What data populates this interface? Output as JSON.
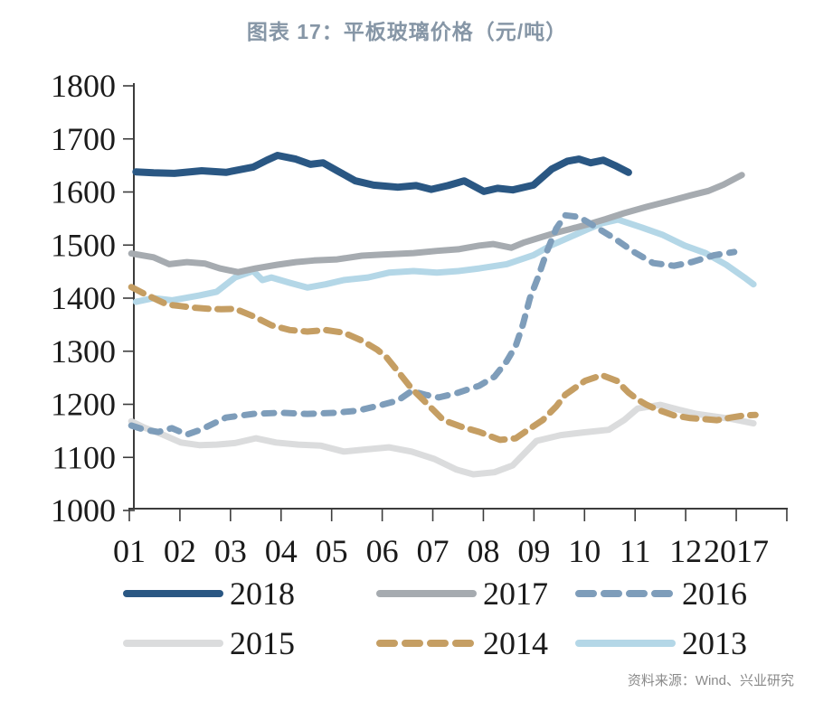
{
  "header": {
    "title": "图表 17：平板玻璃价格（元/吨）"
  },
  "source_note": "资料来源：Wind、兴业研究",
  "chart_data": {
    "type": "line",
    "title": "图表 17：平板玻璃价格（元/吨）",
    "unit": "元/吨",
    "grid": false,
    "legend_position": "bottom",
    "y_axis": {
      "min": 1000,
      "max": 1800,
      "step": 100,
      "tick_labels": [
        "1000",
        "1100",
        "1200",
        "1300",
        "1400",
        "1500",
        "1600",
        "1700",
        "1800"
      ]
    },
    "x_axis": {
      "tick_labels": [
        "01",
        "02",
        "03",
        "04",
        "05",
        "06",
        "07",
        "08",
        "09",
        "10",
        "11",
        "12",
        "2017",
        ""
      ]
    },
    "legend_order": [
      [
        "2018",
        "2017",
        "2016"
      ],
      [
        "2015",
        "2014",
        "2013"
      ]
    ],
    "series": [
      {
        "name": "2015",
        "color": "#dbdcdd",
        "style": "solid",
        "points": [
          [
            1.04,
            1168
          ],
          [
            1.3,
            1156
          ],
          [
            1.66,
            1143
          ],
          [
            2.02,
            1128
          ],
          [
            2.38,
            1123
          ],
          [
            2.73,
            1124
          ],
          [
            3.09,
            1127
          ],
          [
            3.5,
            1136
          ],
          [
            3.9,
            1128
          ],
          [
            4.34,
            1124
          ],
          [
            4.79,
            1122
          ],
          [
            5.24,
            1111
          ],
          [
            5.69,
            1115
          ],
          [
            6.13,
            1119
          ],
          [
            6.58,
            1111
          ],
          [
            7.03,
            1097
          ],
          [
            7.47,
            1077
          ],
          [
            7.8,
            1068
          ],
          [
            8.22,
            1072
          ],
          [
            8.58,
            1085
          ],
          [
            9.05,
            1131
          ],
          [
            9.53,
            1142
          ],
          [
            9.98,
            1147
          ],
          [
            10.48,
            1152
          ],
          [
            10.78,
            1170
          ],
          [
            11.05,
            1192
          ],
          [
            11.5,
            1199
          ],
          [
            11.86,
            1190
          ],
          [
            12.21,
            1182
          ],
          [
            12.57,
            1177
          ],
          [
            12.93,
            1172
          ],
          [
            13.34,
            1164
          ]
        ]
      },
      {
        "name": "2013",
        "color": "#b4d7e7",
        "style": "solid",
        "points": [
          [
            1.13,
            1393
          ],
          [
            1.48,
            1400
          ],
          [
            1.84,
            1396
          ],
          [
            2.38,
            1405
          ],
          [
            2.73,
            1412
          ],
          [
            3.09,
            1439
          ],
          [
            3.45,
            1451
          ],
          [
            3.63,
            1434
          ],
          [
            3.81,
            1439
          ],
          [
            4.17,
            1429
          ],
          [
            4.52,
            1420
          ],
          [
            4.88,
            1426
          ],
          [
            5.24,
            1434
          ],
          [
            5.72,
            1439
          ],
          [
            6.13,
            1448
          ],
          [
            6.62,
            1451
          ],
          [
            7.08,
            1448
          ],
          [
            7.51,
            1451
          ],
          [
            7.92,
            1456
          ],
          [
            8.46,
            1464
          ],
          [
            8.99,
            1481
          ],
          [
            9.35,
            1500
          ],
          [
            9.71,
            1515
          ],
          [
            10.07,
            1530
          ],
          [
            10.34,
            1541
          ],
          [
            10.66,
            1548
          ],
          [
            11.14,
            1533
          ],
          [
            11.55,
            1519
          ],
          [
            11.98,
            1499
          ],
          [
            12.39,
            1485
          ],
          [
            12.8,
            1463
          ],
          [
            13.16,
            1439
          ],
          [
            13.34,
            1426
          ]
        ]
      },
      {
        "name": "2017",
        "color": "#a6abb0",
        "style": "solid",
        "points": [
          [
            1.04,
            1484
          ],
          [
            1.48,
            1477
          ],
          [
            1.79,
            1464
          ],
          [
            2.14,
            1468
          ],
          [
            2.5,
            1465
          ],
          [
            2.79,
            1456
          ],
          [
            3.15,
            1449
          ],
          [
            3.5,
            1456
          ],
          [
            3.93,
            1463
          ],
          [
            4.29,
            1468
          ],
          [
            4.65,
            1471
          ],
          [
            5.11,
            1473
          ],
          [
            5.6,
            1480
          ],
          [
            6.01,
            1482
          ],
          [
            6.62,
            1485
          ],
          [
            7.08,
            1489
          ],
          [
            7.51,
            1492
          ],
          [
            7.92,
            1499
          ],
          [
            8.19,
            1502
          ],
          [
            8.55,
            1495
          ],
          [
            8.81,
            1505
          ],
          [
            9.08,
            1513
          ],
          [
            9.39,
            1522
          ],
          [
            9.71,
            1530
          ],
          [
            10.07,
            1539
          ],
          [
            10.42,
            1549
          ],
          [
            10.78,
            1560
          ],
          [
            11.23,
            1572
          ],
          [
            11.68,
            1583
          ],
          [
            12.03,
            1592
          ],
          [
            12.45,
            1602
          ],
          [
            12.75,
            1614
          ],
          [
            13.11,
            1632
          ]
        ]
      },
      {
        "name": "2016",
        "color": "#7e9dba",
        "style": "dashed",
        "points": [
          [
            1.04,
            1160
          ],
          [
            1.3,
            1152
          ],
          [
            1.57,
            1148
          ],
          [
            1.84,
            1155
          ],
          [
            2.14,
            1143
          ],
          [
            2.41,
            1152
          ],
          [
            2.91,
            1175
          ],
          [
            3.45,
            1182
          ],
          [
            3.99,
            1184
          ],
          [
            4.52,
            1182
          ],
          [
            5.06,
            1184
          ],
          [
            5.51,
            1188
          ],
          [
            5.95,
            1198
          ],
          [
            6.31,
            1207
          ],
          [
            6.58,
            1225
          ],
          [
            6.85,
            1218
          ],
          [
            7.12,
            1213
          ],
          [
            7.47,
            1221
          ],
          [
            7.92,
            1235
          ],
          [
            8.22,
            1252
          ],
          [
            8.46,
            1281
          ],
          [
            8.64,
            1310
          ],
          [
            8.78,
            1350
          ],
          [
            8.92,
            1400
          ],
          [
            9.08,
            1439
          ],
          [
            9.26,
            1489
          ],
          [
            9.44,
            1531
          ],
          [
            9.62,
            1556
          ],
          [
            9.89,
            1553
          ],
          [
            10.19,
            1536
          ],
          [
            10.6,
            1512
          ],
          [
            10.96,
            1488
          ],
          [
            11.36,
            1466
          ],
          [
            11.77,
            1461
          ],
          [
            12.12,
            1468
          ],
          [
            12.57,
            1481
          ],
          [
            12.96,
            1487
          ]
        ]
      },
      {
        "name": "2014",
        "color": "#c59e63",
        "style": "dashed",
        "points": [
          [
            1.04,
            1421
          ],
          [
            1.3,
            1408
          ],
          [
            1.57,
            1396
          ],
          [
            1.75,
            1388
          ],
          [
            2.02,
            1385
          ],
          [
            2.29,
            1382
          ],
          [
            2.56,
            1380
          ],
          [
            2.82,
            1379
          ],
          [
            3.09,
            1380
          ],
          [
            3.45,
            1366
          ],
          [
            3.81,
            1349
          ],
          [
            4.17,
            1340
          ],
          [
            4.52,
            1337
          ],
          [
            4.88,
            1340
          ],
          [
            5.24,
            1335
          ],
          [
            5.6,
            1320
          ],
          [
            5.9,
            1303
          ],
          [
            6.08,
            1289
          ],
          [
            6.37,
            1255
          ],
          [
            6.58,
            1230
          ],
          [
            6.94,
            1196
          ],
          [
            7.21,
            1170
          ],
          [
            7.56,
            1158
          ],
          [
            7.92,
            1148
          ],
          [
            8.33,
            1133
          ],
          [
            8.64,
            1136
          ],
          [
            8.9,
            1153
          ],
          [
            9.17,
            1170
          ],
          [
            9.44,
            1196
          ],
          [
            9.62,
            1218
          ],
          [
            10.01,
            1244
          ],
          [
            10.34,
            1255
          ],
          [
            10.64,
            1244
          ],
          [
            10.87,
            1222
          ],
          [
            11.05,
            1209
          ],
          [
            11.23,
            1199
          ],
          [
            11.44,
            1190
          ],
          [
            11.77,
            1179
          ],
          [
            12.09,
            1174
          ],
          [
            12.36,
            1172
          ],
          [
            12.62,
            1170
          ],
          [
            12.89,
            1175
          ],
          [
            13.16,
            1179
          ],
          [
            13.38,
            1180
          ]
        ]
      },
      {
        "name": "2018",
        "color": "#2a5783",
        "style": "solid",
        "points": [
          [
            1.13,
            1638
          ],
          [
            1.48,
            1636
          ],
          [
            1.89,
            1635
          ],
          [
            2.43,
            1640
          ],
          [
            2.91,
            1637
          ],
          [
            3.45,
            1647
          ],
          [
            3.72,
            1660
          ],
          [
            3.93,
            1669
          ],
          [
            4.29,
            1662
          ],
          [
            4.58,
            1652
          ],
          [
            4.83,
            1655
          ],
          [
            5.11,
            1640
          ],
          [
            5.47,
            1621
          ],
          [
            5.83,
            1613
          ],
          [
            6.31,
            1609
          ],
          [
            6.67,
            1612
          ],
          [
            6.97,
            1605
          ],
          [
            7.3,
            1612
          ],
          [
            7.62,
            1621
          ],
          [
            8.01,
            1601
          ],
          [
            8.28,
            1607
          ],
          [
            8.58,
            1604
          ],
          [
            8.99,
            1613
          ],
          [
            9.35,
            1643
          ],
          [
            9.66,
            1658
          ],
          [
            9.89,
            1662
          ],
          [
            10.12,
            1655
          ],
          [
            10.37,
            1660
          ],
          [
            10.6,
            1650
          ],
          [
            10.87,
            1637
          ]
        ]
      }
    ]
  }
}
